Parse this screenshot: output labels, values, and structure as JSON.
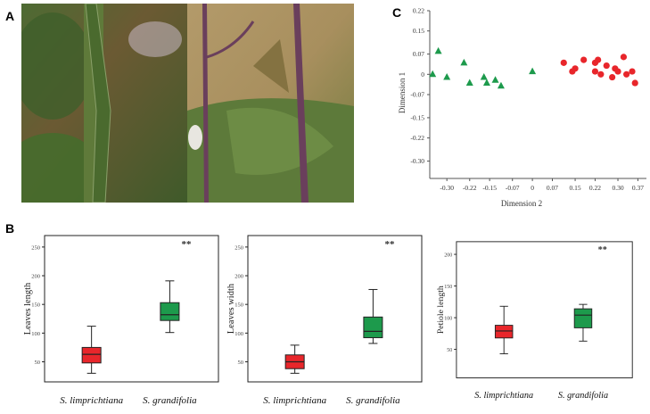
{
  "panels": {
    "a": "A",
    "b": "B",
    "c": "C"
  },
  "colors": {
    "red": "#e8262b",
    "green": "#1d9a4c",
    "text": "#333333"
  },
  "photo": {
    "description_icon": "plant-stem-photo"
  },
  "scatter": {
    "xlabel": "Dimension 2",
    "ylabel": "Dimension 1",
    "xticks": [
      "-0.30",
      "-0.22",
      "-0.15",
      "-0.07",
      "0",
      "0.07",
      "0.15",
      "0.22",
      "0.30",
      "0.37"
    ],
    "yticks": [
      "0.22",
      "0.15",
      "0.07",
      "0",
      "-0.07",
      "-0.15",
      "-0.22",
      "-0.30"
    ]
  },
  "chart_data": [
    {
      "type": "scatter",
      "xlabel": "Dimension 2",
      "ylabel": "Dimension 1",
      "xlim": [
        -0.36,
        0.4
      ],
      "ylim": [
        -0.36,
        0.22
      ],
      "series": [
        {
          "color": "#1d9a4c",
          "marker": "triangle",
          "points": [
            [
              -0.35,
              0.0
            ],
            [
              -0.33,
              0.08
            ],
            [
              -0.3,
              -0.01
            ],
            [
              -0.24,
              0.04
            ],
            [
              -0.22,
              -0.03
            ],
            [
              -0.17,
              -0.01
            ],
            [
              -0.16,
              -0.03
            ],
            [
              -0.13,
              -0.02
            ],
            [
              -0.11,
              -0.04
            ],
            [
              0.0,
              0.01
            ]
          ]
        },
        {
          "color": "#e8262b",
          "marker": "circle",
          "points": [
            [
              0.11,
              0.04
            ],
            [
              0.14,
              0.01
            ],
            [
              0.15,
              0.02
            ],
            [
              0.18,
              0.05
            ],
            [
              0.22,
              0.04
            ],
            [
              0.22,
              0.01
            ],
            [
              0.23,
              0.05
            ],
            [
              0.24,
              0.0
            ],
            [
              0.26,
              0.03
            ],
            [
              0.28,
              -0.01
            ],
            [
              0.29,
              0.02
            ],
            [
              0.3,
              0.01
            ],
            [
              0.32,
              0.06
            ],
            [
              0.33,
              0.0
            ],
            [
              0.35,
              0.01
            ],
            [
              0.36,
              -0.03
            ]
          ]
        }
      ]
    },
    {
      "type": "box",
      "ylabel": "Leaves length",
      "yticks": [
        "50",
        "100",
        "150",
        "200",
        "250"
      ],
      "ylim": [
        15,
        270
      ],
      "significance": "**",
      "categories": [
        "S. limprichtiana",
        "S. grandifolia"
      ],
      "boxes": [
        {
          "min": 30,
          "q1": 48,
          "median": 63,
          "q3": 75,
          "max": 112
        },
        {
          "min": 101,
          "q1": 122,
          "median": 132,
          "q3": 153,
          "max": 191
        }
      ]
    },
    {
      "type": "box",
      "ylabel": "Leaves width",
      "yticks": [
        "50",
        "100",
        "150",
        "200",
        "250"
      ],
      "ylim": [
        15,
        270
      ],
      "significance": "**",
      "categories": [
        "S. limprichtiana",
        "S. grandifolia"
      ],
      "boxes": [
        {
          "min": 30,
          "q1": 38,
          "median": 50,
          "q3": 62,
          "max": 79
        },
        {
          "min": 82,
          "q1": 92,
          "median": 103,
          "q3": 128,
          "max": 176
        }
      ]
    },
    {
      "type": "box",
      "ylabel": "Petiole length",
      "yticks": [
        "50",
        "100",
        "150",
        "200"
      ],
      "ylim": [
        5,
        220
      ],
      "significance": "**",
      "categories": [
        "S. limprichtiana",
        "S. grandifolia"
      ],
      "boxes": [
        {
          "min": 43,
          "q1": 68,
          "median": 79,
          "q3": 88,
          "max": 118
        },
        {
          "min": 63,
          "q1": 84,
          "median": 104,
          "q3": 114,
          "max": 121
        }
      ]
    }
  ]
}
